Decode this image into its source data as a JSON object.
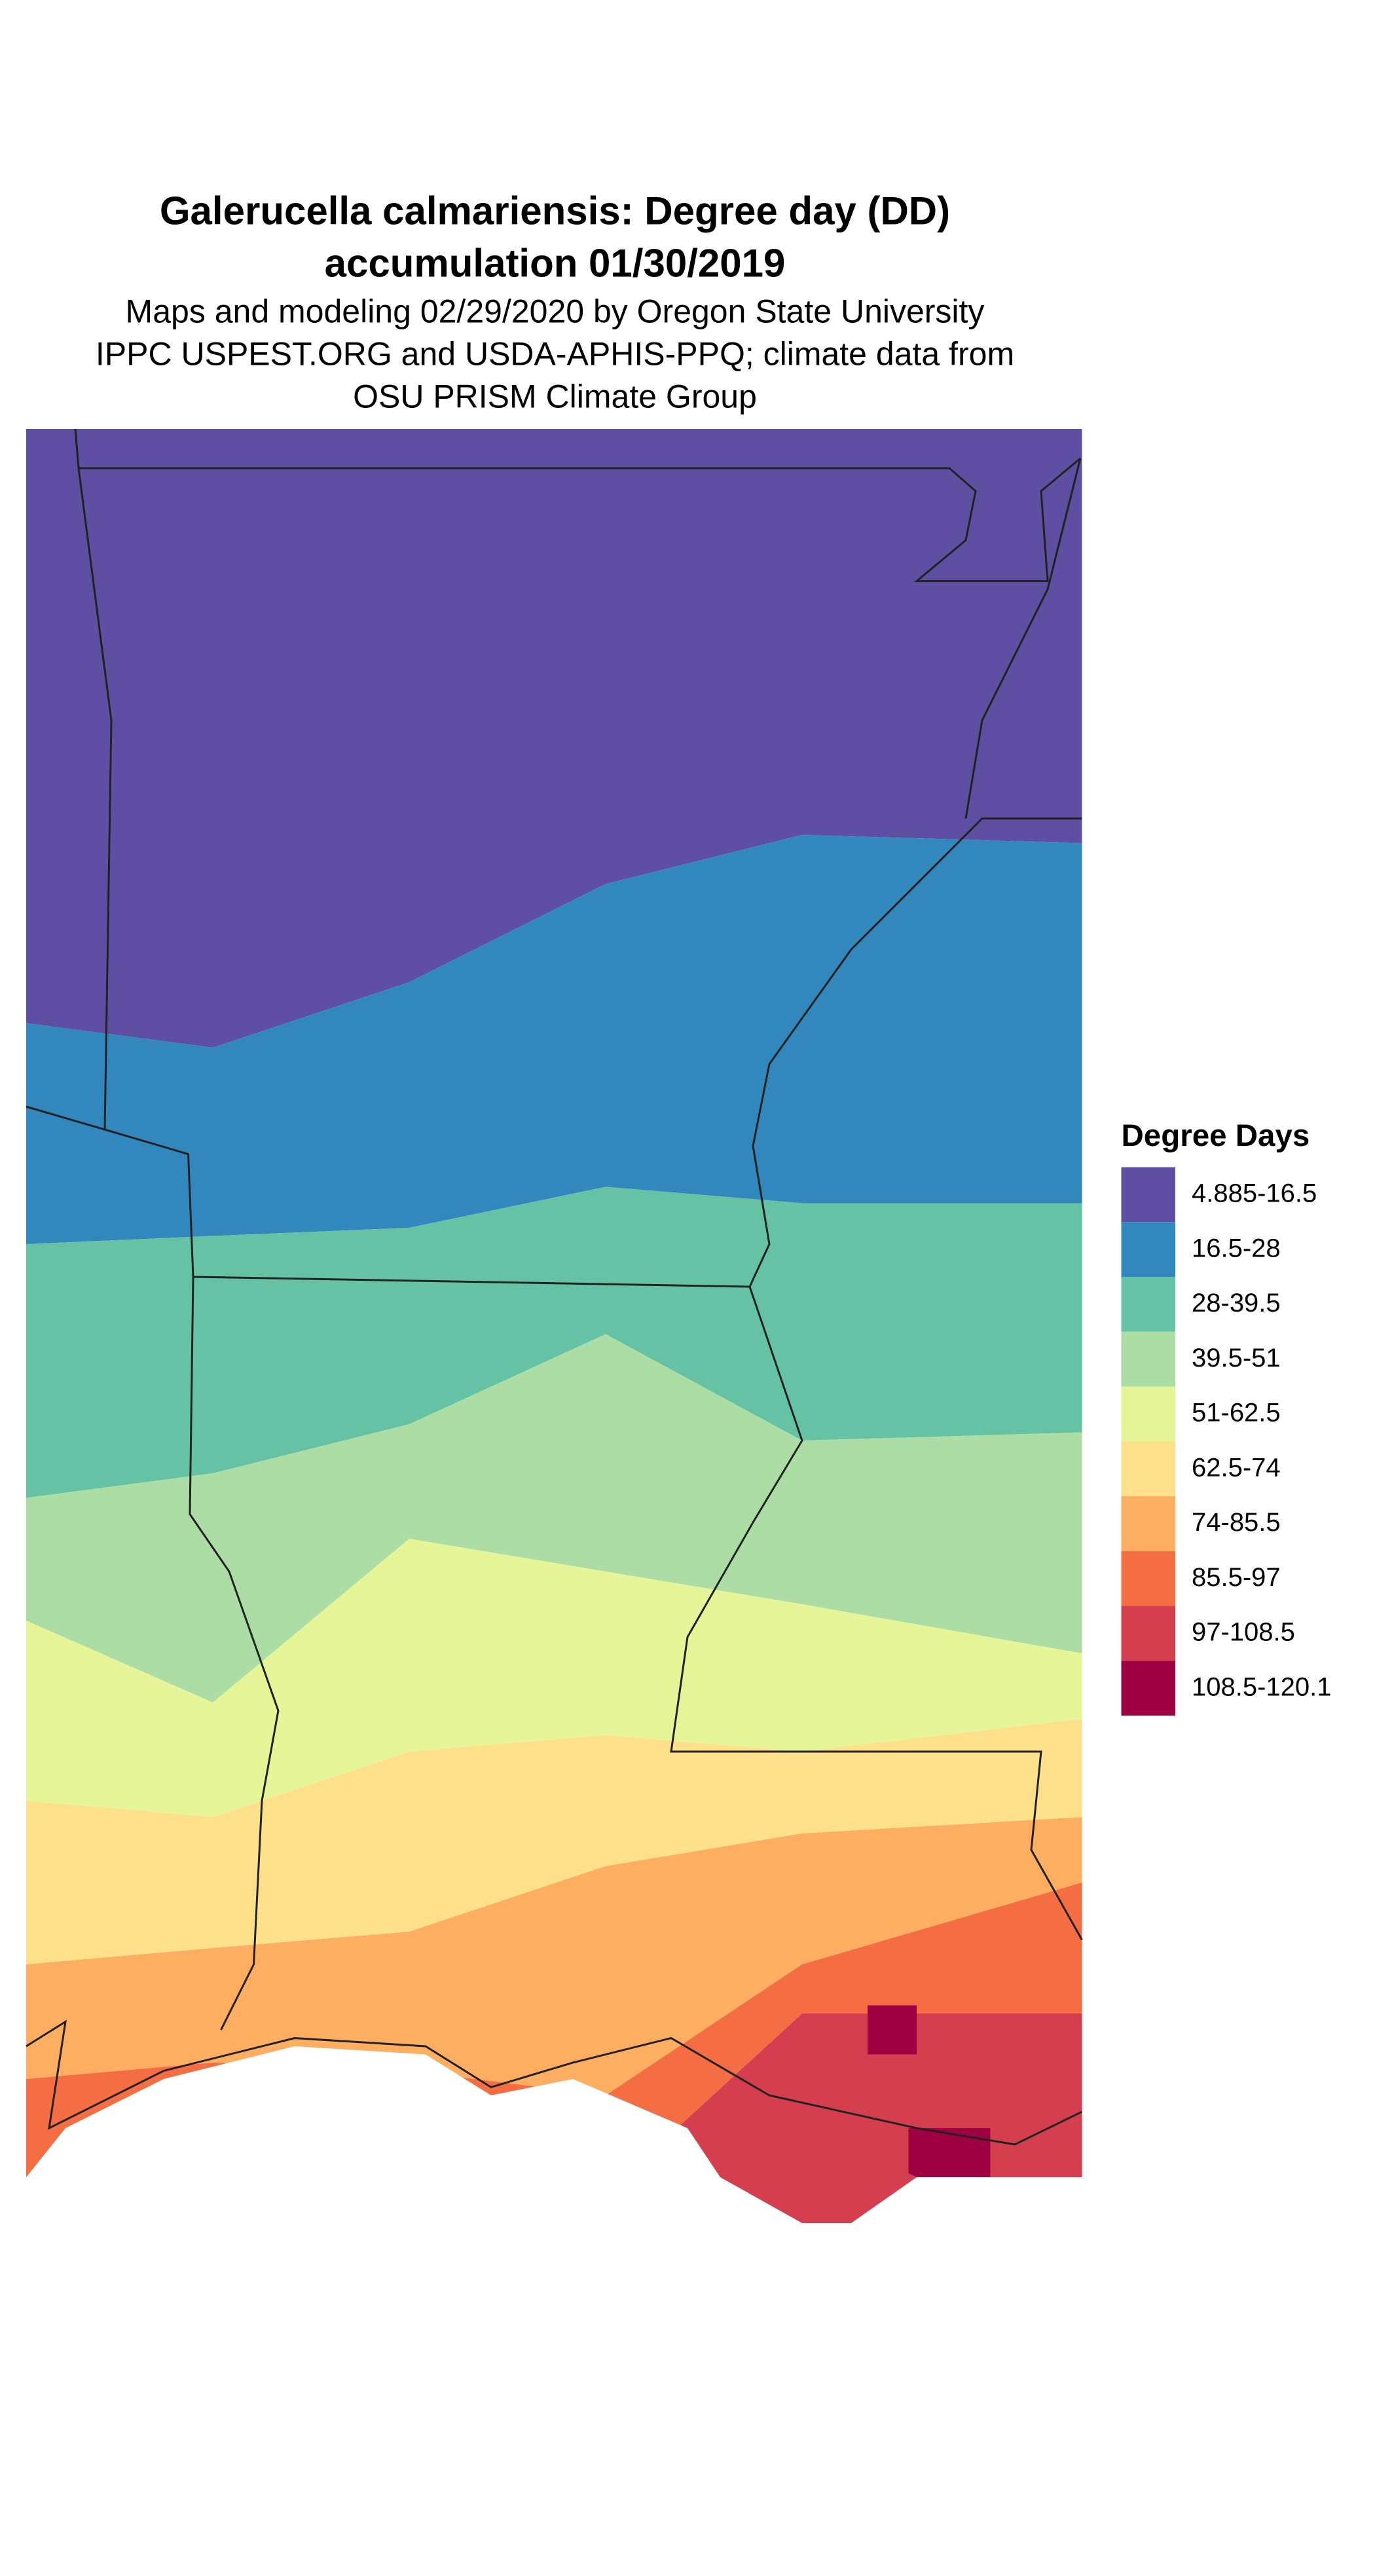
{
  "title": [
    "Galerucella calmariensis: Degree day (DD)",
    "accumulation 01/30/2019"
  ],
  "subtitle": [
    "Maps and modeling 02/29/2020 by Oregon State University",
    "IPPC USPEST.ORG and USDA-APHIS-PPQ; climate data from",
    "OSU PRISM Climate Group"
  ],
  "legend": {
    "title": "Degree Days",
    "items": [
      {
        "label": "4.885-16.5",
        "color": "#5e4fa2"
      },
      {
        "label": "16.5-28",
        "color": "#3288bd"
      },
      {
        "label": "28-39.5",
        "color": "#66c2a5"
      },
      {
        "label": "39.5-51",
        "color": "#abdda4"
      },
      {
        "label": "51-62.5",
        "color": "#e6f598"
      },
      {
        "label": "62.5-74",
        "color": "#fee08b"
      },
      {
        "label": "74-85.5",
        "color": "#fdae61"
      },
      {
        "label": "85.5-97",
        "color": "#f46d43"
      },
      {
        "label": "97-108.5",
        "color": "#d53e4f"
      },
      {
        "label": "108.5-120.1",
        "color": "#9e0142"
      }
    ]
  }
}
